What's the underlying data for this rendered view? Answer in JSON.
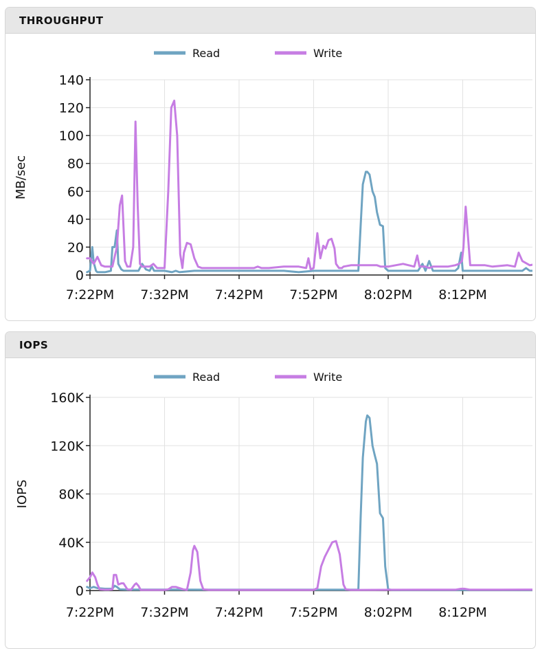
{
  "panels": [
    {
      "title": "THROUGHPUT"
    },
    {
      "title": "IOPS"
    }
  ],
  "chart_data": [
    {
      "type": "line",
      "title": "THROUGHPUT",
      "ylabel": "MB/sec",
      "xlabel": "",
      "ylim": [
        0,
        140
      ],
      "yticks": [
        0,
        20,
        40,
        60,
        80,
        100,
        120,
        140
      ],
      "ytick_labels": [
        "0",
        "20",
        "40",
        "60",
        "80",
        "100",
        "120",
        "140"
      ],
      "xlim": [
        0,
        60
      ],
      "xticks": [
        0,
        10,
        20,
        30,
        40,
        50
      ],
      "xtick_labels": [
        "7:22PM",
        "7:32PM",
        "7:42PM",
        "7:52PM",
        "8:02PM",
        "8:12PM"
      ],
      "grid": true,
      "legend_position": "top",
      "series": [
        {
          "name": "Read",
          "color": "#6fa4c2",
          "x": [
            -0.4,
            0.0,
            0.3,
            0.5,
            0.8,
            1.0,
            2.0,
            2.8,
            3.0,
            3.3,
            3.6,
            3.8,
            4.2,
            4.5,
            5.0,
            5.5,
            6.0,
            6.5,
            7.0,
            7.5,
            8.0,
            8.3,
            8.6,
            9.0,
            10.0,
            11.0,
            11.5,
            12.0,
            14.0,
            16.0,
            18.0,
            20.0,
            22.0,
            24.0,
            26.0,
            28.0,
            30.0,
            32.0,
            34.0,
            35.5,
            36.0,
            36.3,
            36.6,
            37.0,
            37.2,
            37.5,
            37.9,
            38.2,
            38.5,
            38.9,
            39.3,
            39.6,
            40.0,
            40.5,
            42.0,
            44.0,
            44.6,
            45.0,
            45.5,
            46.0,
            47.0,
            48.0,
            49.0,
            49.4,
            49.8,
            50.0,
            51.0,
            52.0,
            54.0,
            56.0,
            58.0,
            58.5,
            59.0,
            60.0
          ],
          "values": [
            2,
            3,
            20,
            9,
            3,
            2,
            2,
            3,
            20,
            20,
            32,
            8,
            4,
            3,
            3,
            3,
            3,
            3,
            8,
            4,
            3,
            6,
            3,
            3,
            3,
            2,
            3,
            2,
            3,
            3,
            3,
            3,
            3,
            3,
            3,
            2,
            3,
            3,
            3,
            3,
            3,
            35,
            65,
            74,
            74,
            72,
            60,
            56,
            45,
            36,
            35,
            5,
            3,
            3,
            3,
            3,
            8,
            3,
            10,
            3,
            3,
            3,
            3,
            5,
            16,
            3,
            3,
            3,
            3,
            3,
            3,
            5,
            3,
            3
          ]
        },
        {
          "name": "Write",
          "color": "#c67de3",
          "x": [
            -0.4,
            0.0,
            0.5,
            1.0,
            1.5,
            2.0,
            2.5,
            3.0,
            3.6,
            4.0,
            4.3,
            4.7,
            5.0,
            5.4,
            5.8,
            6.1,
            6.4,
            6.7,
            7.0,
            7.5,
            8.0,
            8.5,
            9.0,
            10.0,
            10.5,
            10.9,
            11.3,
            11.7,
            12.1,
            12.4,
            12.6,
            13.0,
            13.5,
            14.0,
            14.5,
            15.0,
            16.0,
            17.0,
            18.0,
            20.0,
            22.0,
            22.5,
            23.0,
            24.0,
            26.0,
            28.0,
            29.0,
            29.3,
            29.6,
            30.0,
            30.5,
            30.9,
            31.3,
            31.6,
            32.0,
            32.4,
            32.8,
            33.0,
            33.4,
            33.8,
            34.0,
            35.0,
            36.0,
            38.0,
            38.5,
            39.0,
            40.0,
            42.0,
            43.5,
            43.9,
            44.2,
            44.6,
            45.0,
            45.5,
            46.0,
            48.0,
            49.0,
            49.5,
            49.9,
            50.1,
            50.4,
            51.0,
            52.0,
            53.0,
            54.0,
            56.0,
            57.0,
            57.5,
            58.0,
            59.0,
            60.0
          ],
          "values": [
            12,
            12,
            8,
            13,
            7,
            6,
            6,
            6,
            20,
            50,
            57,
            10,
            6,
            6,
            20,
            110,
            50,
            8,
            6,
            6,
            6,
            8,
            5,
            5,
            60,
            120,
            125,
            100,
            15,
            5,
            16,
            23,
            22,
            12,
            6,
            5,
            5,
            5,
            5,
            5,
            5,
            6,
            5,
            5,
            6,
            6,
            5,
            12,
            4,
            5,
            30,
            12,
            21,
            19,
            25,
            26,
            19,
            8,
            5,
            5,
            6,
            7,
            7,
            7,
            7,
            6,
            6,
            8,
            6,
            14,
            6,
            6,
            6,
            5,
            6,
            6,
            7,
            8,
            10,
            20,
            49,
            7,
            7,
            7,
            6,
            7,
            6,
            16,
            10,
            7,
            8
          ]
        }
      ]
    },
    {
      "type": "line",
      "title": "IOPS",
      "ylabel": "IOPS",
      "xlabel": "",
      "ylim": [
        0,
        160000
      ],
      "yticks": [
        0,
        40000,
        80000,
        120000,
        160000
      ],
      "ytick_labels": [
        "0",
        "40K",
        "80K",
        "120K",
        "160K"
      ],
      "xlim": [
        0,
        60
      ],
      "xticks": [
        0,
        10,
        20,
        30,
        40,
        50
      ],
      "xtick_labels": [
        "7:22PM",
        "7:32PM",
        "7:42PM",
        "7:52PM",
        "8:02PM",
        "8:12PM"
      ],
      "grid": true,
      "legend_position": "top",
      "series": [
        {
          "name": "Read",
          "color": "#6fa4c2",
          "x": [
            -0.4,
            0.0,
            0.5,
            1.0,
            2.0,
            3.0,
            3.3,
            3.6,
            4.0,
            5.0,
            8.0,
            10.0,
            15.0,
            20.0,
            25.0,
            30.0,
            33.0,
            35.5,
            36.0,
            36.3,
            36.6,
            37.0,
            37.2,
            37.5,
            37.9,
            38.2,
            38.5,
            38.9,
            39.3,
            39.6,
            40.0,
            40.5,
            45.0,
            50.0,
            55.0,
            60.0
          ],
          "values": [
            3000,
            2000,
            3000,
            2000,
            1500,
            1500,
            4000,
            3000,
            1000,
            800,
            800,
            800,
            700,
            700,
            700,
            700,
            700,
            700,
            800,
            60000,
            110000,
            140000,
            145000,
            143000,
            120000,
            112000,
            105000,
            64000,
            60000,
            20000,
            1000,
            500,
            500,
            500,
            500,
            500
          ]
        },
        {
          "name": "Write",
          "color": "#c67de3",
          "x": [
            -0.4,
            0.0,
            0.3,
            0.7,
            1.0,
            1.3,
            2.0,
            2.5,
            3.0,
            3.2,
            3.5,
            3.8,
            4.2,
            4.5,
            5.0,
            5.5,
            6.0,
            6.2,
            6.5,
            6.8,
            7.5,
            8.0,
            9.0,
            10.0,
            10.5,
            11.0,
            11.5,
            12.5,
            13.0,
            13.5,
            13.8,
            14.0,
            14.4,
            14.8,
            15.2,
            16.0,
            18.0,
            20.0,
            24.0,
            28.0,
            30.0,
            30.5,
            31.0,
            31.5,
            32.0,
            32.5,
            33.0,
            33.5,
            34.0,
            34.3,
            35.0,
            36.0,
            40.0,
            45.0,
            49.0,
            49.8,
            50.2,
            51.0,
            55.0,
            60.0
          ],
          "values": [
            8000,
            11000,
            15000,
            11000,
            5000,
            1000,
            700,
            700,
            1000,
            13000,
            13000,
            5000,
            6000,
            6000,
            1000,
            700,
            5000,
            6000,
            4000,
            500,
            500,
            500,
            500,
            500,
            1000,
            3000,
            3000,
            1000,
            500,
            15000,
            33000,
            37000,
            32000,
            8000,
            1000,
            500,
            500,
            500,
            500,
            500,
            500,
            2000,
            20000,
            28000,
            34000,
            40000,
            41000,
            30000,
            5000,
            1000,
            500,
            500,
            600,
            700,
            700,
            1500,
            1500,
            700,
            700,
            800
          ]
        }
      ]
    }
  ]
}
